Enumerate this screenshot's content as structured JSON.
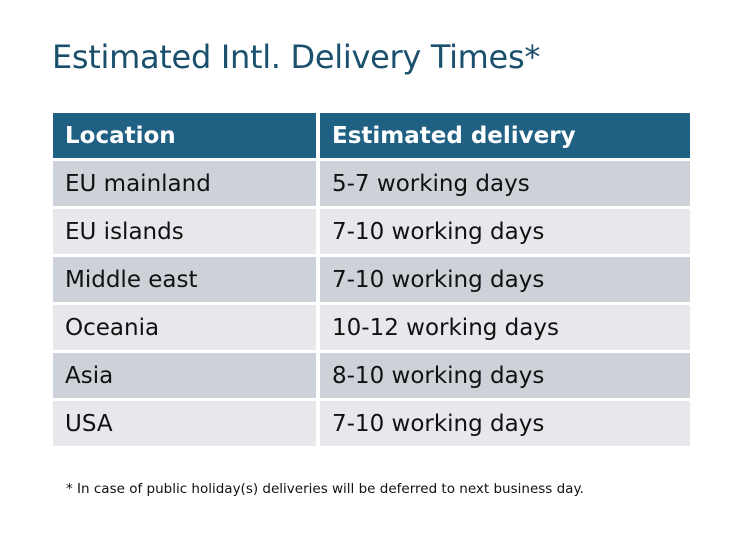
{
  "title": "Estimated Intl. Delivery Times*",
  "table": {
    "headers": [
      "Location",
      "Estimated delivery"
    ],
    "rows": [
      [
        "EU mainland",
        "5-7 working days"
      ],
      [
        "EU islands",
        "7-10 working days"
      ],
      [
        "Middle east",
        "7-10 working days"
      ],
      [
        "Oceania",
        "10-12 working days"
      ],
      [
        "Asia",
        "8-10 working days"
      ],
      [
        "USA",
        "7-10 working days"
      ]
    ]
  },
  "footnote": "* In case of public holiday(s) deliveries will be deferred to next business day.",
  "colors": {
    "title": "#1B506D",
    "header_bg": "#1F6083",
    "row_dark": "#CDD1D8",
    "row_light": "#E6E8EB"
  }
}
